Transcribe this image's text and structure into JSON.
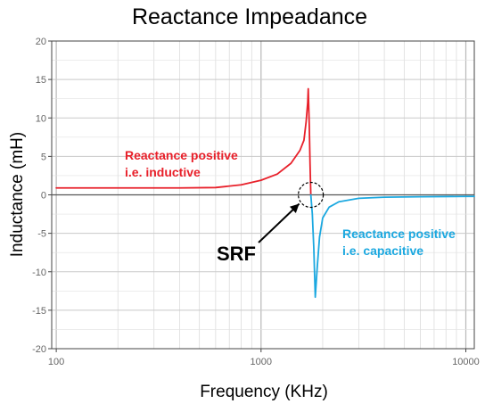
{
  "chart_data": {
    "type": "line",
    "title": "Reactance Impeadance",
    "xlabel": "Frequency (KHz)",
    "ylabel": "Inductance (mH)",
    "x_scale": "log",
    "xlim": [
      95,
      11000
    ],
    "ylim": [
      -20,
      20
    ],
    "x_ticks": [
      100,
      1000,
      10000
    ],
    "x_tick_labels": [
      "100",
      "1000",
      "10000"
    ],
    "y_ticks": [
      -20,
      -15,
      -10,
      -5,
      0,
      5,
      10,
      15,
      20
    ],
    "y_tick_labels": [
      "-20",
      "-15",
      "-10",
      "-5",
      "0",
      "5",
      "10",
      "15",
      "20"
    ],
    "grid": true,
    "series": [
      {
        "color": "#e8202a",
        "points": [
          [
            100,
            0.9
          ],
          [
            200,
            0.9
          ],
          [
            400,
            0.9
          ],
          [
            600,
            0.95
          ],
          [
            800,
            1.3
          ],
          [
            1000,
            1.9
          ],
          [
            1200,
            2.7
          ],
          [
            1400,
            4.1
          ],
          [
            1550,
            5.8
          ],
          [
            1620,
            7.1
          ],
          [
            1660,
            9.5
          ],
          [
            1690,
            12.0
          ],
          [
            1700,
            13.8
          ],
          [
            1720,
            9.0
          ],
          [
            1735,
            4.0
          ],
          [
            1750,
            0.0
          ]
        ]
      },
      {
        "color": "#1ba8e0",
        "points": [
          [
            1750,
            0.0
          ],
          [
            1780,
            -2.5
          ],
          [
            1810,
            -7.0
          ],
          [
            1840,
            -13.3
          ],
          [
            1880,
            -9.5
          ],
          [
            1930,
            -5.5
          ],
          [
            2000,
            -3.0
          ],
          [
            2150,
            -1.6
          ],
          [
            2400,
            -0.9
          ],
          [
            3000,
            -0.45
          ],
          [
            4000,
            -0.3
          ],
          [
            6000,
            -0.25
          ],
          [
            10000,
            -0.2
          ],
          [
            11000,
            -0.2
          ]
        ]
      }
    ],
    "annotations": [
      {
        "name": "inductive",
        "text_lines": [
          "Reactance positive",
          "i.e. inductive"
        ],
        "color": "#e8202a"
      },
      {
        "name": "capacitive",
        "text_lines": [
          "Reactance positive",
          "i.e. capacitive"
        ],
        "color": "#1ba8e0"
      },
      {
        "name": "srf",
        "text": "SRF",
        "color": "#000000",
        "marker_x": 1750,
        "marker_y": 0
      }
    ]
  }
}
